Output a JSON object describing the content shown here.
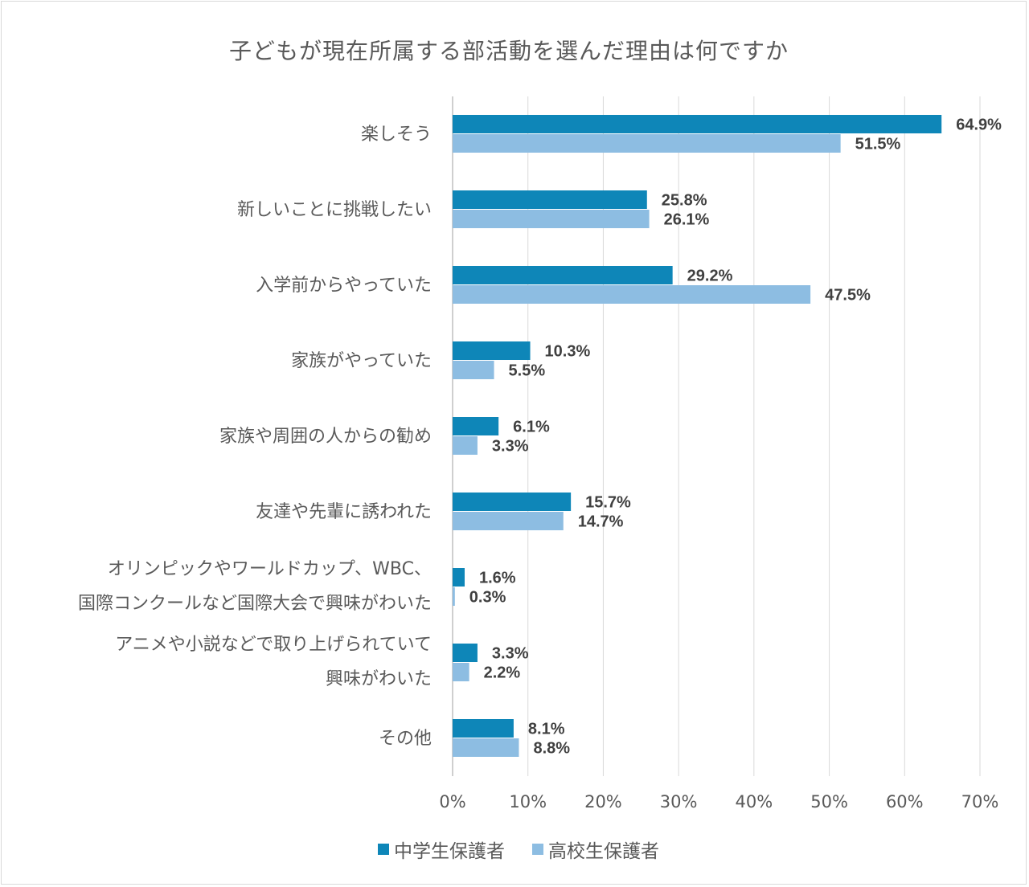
{
  "chart_data": {
    "type": "bar",
    "orientation": "horizontal",
    "title": "子どもが現在所属する部活動を選んだ理由は何ですか",
    "categories": [
      [
        "楽しそう"
      ],
      [
        "新しいことに挑戦したい"
      ],
      [
        "入学前からやっていた"
      ],
      [
        "家族がやっていた"
      ],
      [
        "家族や周囲の人からの勧め"
      ],
      [
        "友達や先輩に誘われた"
      ],
      [
        "オリンピックやワールドカップ、WBC、",
        "国際コンクールなど国際大会で興味がわいた"
      ],
      [
        "アニメや小説などで取り上げられていて",
        "興味がわいた"
      ],
      [
        "その他"
      ]
    ],
    "series": [
      {
        "name": "中学生保護者",
        "color": "#0e86b8",
        "values": [
          64.9,
          25.8,
          29.2,
          10.3,
          6.1,
          15.7,
          1.6,
          3.3,
          8.1
        ]
      },
      {
        "name": "高校生保護者",
        "color": "#8dbde2",
        "values": [
          51.5,
          26.1,
          47.5,
          5.5,
          3.3,
          14.7,
          0.3,
          2.2,
          8.8
        ]
      }
    ],
    "xlim": [
      0,
      70
    ],
    "xticks": [
      "0%",
      "10%",
      "20%",
      "30%",
      "40%",
      "50%",
      "60%",
      "70%"
    ],
    "grid": "vertical",
    "legend": "bottom",
    "data_label_suffix": "%"
  }
}
